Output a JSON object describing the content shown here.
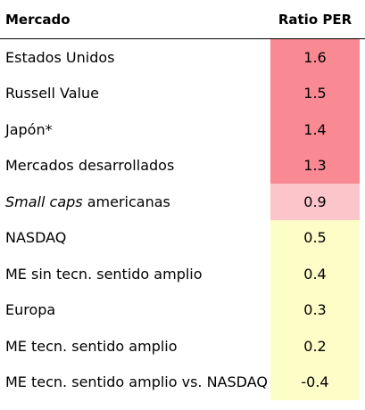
{
  "header": {
    "market": "Mercado",
    "ratio": "Ratio PER"
  },
  "colors": {
    "high": "#f98a94",
    "medium": "#fbc5ca",
    "low": "#fdfdc7"
  },
  "rows": [
    {
      "market": "Estados Unidos",
      "ratio": "1.6",
      "level": "high"
    },
    {
      "market": "Russell Value",
      "ratio": "1.5",
      "level": "high"
    },
    {
      "market": "Japón*",
      "ratio": "1.4",
      "level": "high"
    },
    {
      "market": "Mercados desarrollados",
      "ratio": "1.3",
      "level": "high"
    },
    {
      "market_italic": "Small caps",
      "market_rest": " americanas",
      "ratio": "0.9",
      "level": "medium"
    },
    {
      "market": "NASDAQ",
      "ratio": "0.5",
      "level": "low"
    },
    {
      "market": "ME sin tecn. sentido amplio",
      "ratio": "0.4",
      "level": "low"
    },
    {
      "market": "Europa",
      "ratio": "0.3",
      "level": "low"
    },
    {
      "market": "ME tecn. sentido amplio",
      "ratio": "0.2",
      "level": "low"
    },
    {
      "market": "ME tecn. sentido amplio vs. NASDAQ",
      "ratio": "-0.4",
      "level": "low"
    }
  ]
}
